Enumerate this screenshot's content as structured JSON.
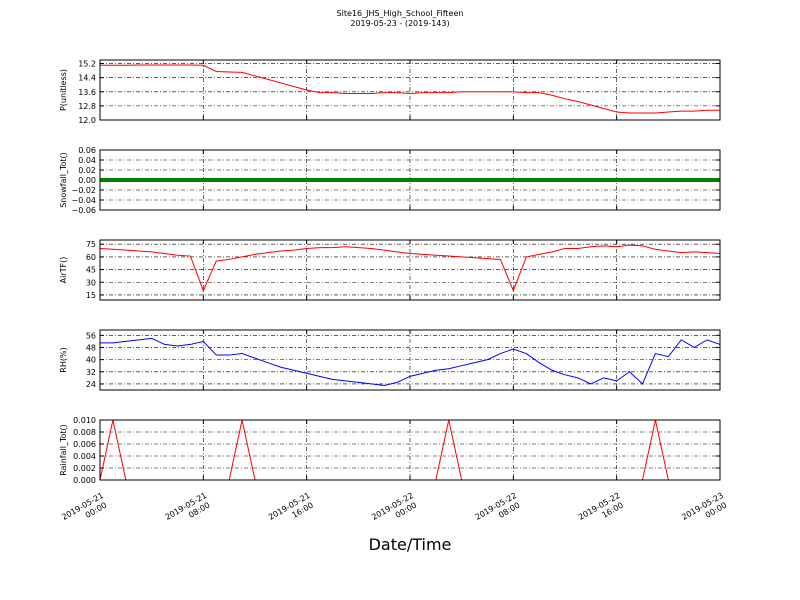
{
  "title": "Site16_JHS_High_School_Fifteen",
  "subtitle": "2019-05-23 - (2019-143)",
  "x_axis": {
    "label": "Date/Time",
    "xlim": [
      "2019-05-21 00:00",
      "2019-05-23 00:00"
    ],
    "xticks": [
      "2019-05-21 00:00",
      "2019-05-21 08:00",
      "2019-05-21 16:00",
      "2019-05-22 00:00",
      "2019-05-22 08:00",
      "2019-05-22 16:00",
      "2019-05-23 00:00"
    ],
    "x": [
      "2019-05-21 00:00",
      "2019-05-21 01:00",
      "2019-05-21 02:00",
      "2019-05-21 03:00",
      "2019-05-21 04:00",
      "2019-05-21 05:00",
      "2019-05-21 06:00",
      "2019-05-21 07:00",
      "2019-05-21 08:00",
      "2019-05-21 09:00",
      "2019-05-21 10:00",
      "2019-05-21 11:00",
      "2019-05-21 12:00",
      "2019-05-21 13:00",
      "2019-05-21 14:00",
      "2019-05-21 15:00",
      "2019-05-21 16:00",
      "2019-05-21 17:00",
      "2019-05-21 18:00",
      "2019-05-21 19:00",
      "2019-05-21 20:00",
      "2019-05-21 21:00",
      "2019-05-21 22:00",
      "2019-05-21 23:00",
      "2019-05-22 00:00",
      "2019-05-22 01:00",
      "2019-05-22 02:00",
      "2019-05-22 03:00",
      "2019-05-22 04:00",
      "2019-05-22 05:00",
      "2019-05-22 06:00",
      "2019-05-22 07:00",
      "2019-05-22 08:00",
      "2019-05-22 09:00",
      "2019-05-22 10:00",
      "2019-05-22 11:00",
      "2019-05-22 12:00",
      "2019-05-22 13:00",
      "2019-05-22 14:00",
      "2019-05-22 15:00",
      "2019-05-22 16:00",
      "2019-05-22 17:00",
      "2019-05-22 18:00",
      "2019-05-22 19:00",
      "2019-05-22 20:00",
      "2019-05-22 21:00",
      "2019-05-22 22:00",
      "2019-05-22 23:00",
      "2019-05-23 00:00"
    ]
  },
  "chart_data": [
    {
      "type": "line",
      "ylabel": "P(unitless)",
      "ylim": [
        12.0,
        15.4
      ],
      "grid": true,
      "yticks": [
        {
          "value": 12.0,
          "label": "12.0"
        },
        {
          "value": 12.8,
          "label": "12.8"
        },
        {
          "value": 13.6,
          "label": "13.6"
        },
        {
          "value": 14.4,
          "label": "14.4"
        },
        {
          "value": 15.2,
          "label": "15.2"
        }
      ],
      "series": [
        {
          "color": "#ff0000",
          "width": 1,
          "values": [
            15.1,
            15.1,
            15.1,
            15.12,
            15.12,
            15.12,
            15.12,
            15.12,
            15.1,
            14.75,
            14.72,
            14.7,
            14.5,
            14.3,
            14.1,
            13.9,
            13.7,
            13.55,
            13.55,
            13.5,
            13.5,
            13.5,
            13.55,
            13.55,
            13.5,
            13.55,
            13.55,
            13.55,
            13.6,
            13.6,
            13.6,
            13.6,
            13.6,
            13.55,
            13.55,
            13.4,
            13.2,
            13.05,
            12.85,
            12.65,
            12.45,
            12.4,
            12.4,
            12.4,
            12.45,
            12.5,
            12.5,
            12.55,
            12.55
          ]
        }
      ]
    },
    {
      "type": "line",
      "ylabel": "Snowfall_Tot()",
      "ylim": [
        -0.06,
        0.06
      ],
      "grid": true,
      "yticks": [
        {
          "value": -0.06,
          "label": "−0.06"
        },
        {
          "value": -0.04,
          "label": "−0.04"
        },
        {
          "value": -0.02,
          "label": "−0.02"
        },
        {
          "value": 0,
          "label": "0.00"
        },
        {
          "value": 0.02,
          "label": "0.02"
        },
        {
          "value": 0.04,
          "label": "0.04"
        },
        {
          "value": 0.06,
          "label": "0.06"
        }
      ],
      "series": [
        {
          "color": "#008000",
          "width": 4,
          "values": [
            0,
            0,
            0,
            0,
            0,
            0,
            0,
            0,
            0,
            0,
            0,
            0,
            0,
            0,
            0,
            0,
            0,
            0,
            0,
            0,
            0,
            0,
            0,
            0,
            0,
            0,
            0,
            0,
            0,
            0,
            0,
            0,
            0,
            0,
            0,
            0,
            0,
            0,
            0,
            0,
            0,
            0,
            0,
            0,
            0,
            0,
            0,
            0,
            0
          ]
        }
      ]
    },
    {
      "type": "line",
      "ylabel": "AirTF()",
      "ylim": [
        9,
        80
      ],
      "grid": true,
      "yticks": [
        15,
        30,
        45,
        60,
        75
      ],
      "series": [
        {
          "color": "#ff0000",
          "width": 1,
          "values": [
            70,
            69,
            68,
            67,
            66,
            64,
            62,
            61,
            20,
            55,
            57,
            60,
            63,
            65,
            67,
            68,
            70,
            71,
            71,
            72,
            71,
            70,
            68,
            66,
            64,
            63,
            62,
            61,
            60,
            59,
            58,
            57,
            20,
            60,
            63,
            66,
            70,
            70,
            72,
            73,
            72,
            74,
            73,
            69,
            67,
            65,
            66,
            65,
            64
          ]
        }
      ]
    },
    {
      "type": "line",
      "ylabel": "RH(%)",
      "ylim": [
        20,
        59.5
      ],
      "grid": true,
      "yticks": [
        24,
        32,
        40,
        48,
        56
      ],
      "series": [
        {
          "color": "#0000ff",
          "width": 1,
          "values": [
            51,
            51,
            52,
            53,
            54,
            50,
            49,
            50,
            52,
            43,
            43,
            44,
            41,
            38,
            35,
            33,
            31,
            29,
            27,
            26,
            25,
            24,
            23,
            25,
            29,
            31,
            33,
            34,
            36,
            38,
            40,
            44,
            47,
            44,
            38,
            33,
            30,
            28,
            24,
            28,
            26,
            32,
            24,
            44,
            42,
            53,
            48,
            53,
            50
          ]
        }
      ]
    },
    {
      "type": "line",
      "ylabel": "Rainfall_Tot()",
      "ylim": [
        0,
        0.01
      ],
      "grid": true,
      "yticks": [
        {
          "value": 0,
          "label": "0.000"
        },
        {
          "value": 0.002,
          "label": "0.002"
        },
        {
          "value": 0.004,
          "label": "0.004"
        },
        {
          "value": 0.006,
          "label": "0.006"
        },
        {
          "value": 0.008,
          "label": "0.008"
        },
        {
          "value": 0.01,
          "label": "0.010"
        }
      ],
      "series": [
        {
          "color": "#ff0000",
          "width": 1,
          "values": [
            0,
            0.01,
            0,
            0,
            0,
            0,
            0,
            0,
            0,
            0,
            0,
            0.01,
            0,
            0,
            0,
            0,
            0,
            0,
            0,
            0,
            0,
            0,
            0,
            0,
            0,
            0,
            0,
            0.01,
            0,
            0,
            0,
            0,
            0,
            0,
            0,
            0,
            0,
            0,
            0,
            0,
            0,
            0,
            0,
            0.01,
            0,
            0,
            0,
            0,
            0
          ]
        }
      ]
    }
  ]
}
